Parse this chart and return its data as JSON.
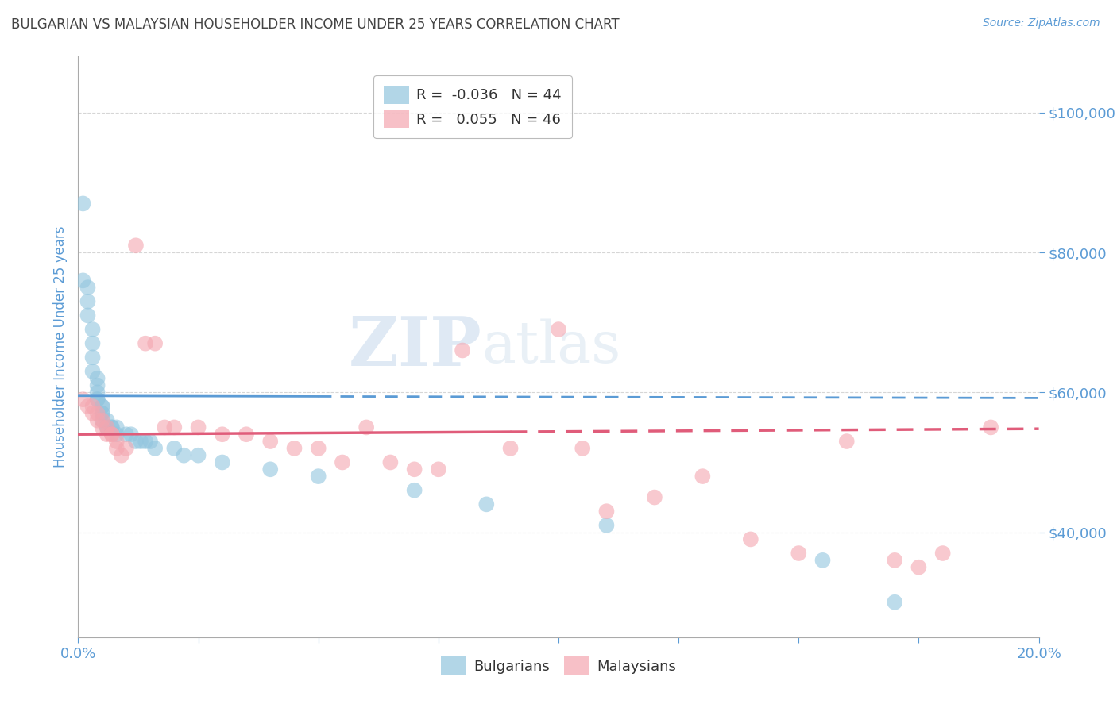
{
  "title": "BULGARIAN VS MALAYSIAN HOUSEHOLDER INCOME UNDER 25 YEARS CORRELATION CHART",
  "source": "Source: ZipAtlas.com",
  "ylabel": "Householder Income Under 25 years",
  "xlim": [
    0.0,
    0.2
  ],
  "ylim": [
    25000,
    108000
  ],
  "yticks": [
    40000,
    60000,
    80000,
    100000
  ],
  "ytick_labels": [
    "$40,000",
    "$60,000",
    "$80,000",
    "$100,000"
  ],
  "xticks": [
    0.0,
    0.025,
    0.05,
    0.075,
    0.1,
    0.125,
    0.15,
    0.175,
    0.2
  ],
  "xtick_labels": [
    "0.0%",
    "",
    "",
    "",
    "",
    "",
    "",
    "",
    "20.0%"
  ],
  "legend_entries": [
    {
      "label": "R =  -0.036   N = 44",
      "color": "#92c5de"
    },
    {
      "label": "R =   0.055   N = 46",
      "color": "#f4a6b0"
    }
  ],
  "bulgarian_scatter_x": [
    0.001,
    0.001,
    0.002,
    0.002,
    0.002,
    0.003,
    0.003,
    0.003,
    0.003,
    0.004,
    0.004,
    0.004,
    0.004,
    0.004,
    0.005,
    0.005,
    0.005,
    0.005,
    0.005,
    0.006,
    0.006,
    0.006,
    0.007,
    0.007,
    0.008,
    0.008,
    0.01,
    0.011,
    0.012,
    0.013,
    0.014,
    0.015,
    0.016,
    0.02,
    0.022,
    0.025,
    0.03,
    0.04,
    0.05,
    0.07,
    0.085,
    0.11,
    0.155,
    0.17
  ],
  "bulgarian_scatter_y": [
    87000,
    76000,
    75000,
    73000,
    71000,
    69000,
    67000,
    65000,
    63000,
    62000,
    61000,
    60000,
    59000,
    59000,
    58000,
    58000,
    57000,
    57000,
    56000,
    56000,
    55000,
    55000,
    55000,
    55000,
    55000,
    54000,
    54000,
    54000,
    53000,
    53000,
    53000,
    53000,
    52000,
    52000,
    51000,
    51000,
    50000,
    49000,
    48000,
    46000,
    44000,
    41000,
    36000,
    30000
  ],
  "malaysian_scatter_x": [
    0.001,
    0.002,
    0.003,
    0.003,
    0.004,
    0.004,
    0.005,
    0.005,
    0.006,
    0.006,
    0.007,
    0.007,
    0.008,
    0.008,
    0.009,
    0.01,
    0.012,
    0.014,
    0.016,
    0.018,
    0.02,
    0.025,
    0.03,
    0.035,
    0.04,
    0.045,
    0.05,
    0.055,
    0.06,
    0.065,
    0.07,
    0.075,
    0.08,
    0.09,
    0.1,
    0.105,
    0.11,
    0.12,
    0.13,
    0.14,
    0.15,
    0.16,
    0.17,
    0.175,
    0.18,
    0.19
  ],
  "malaysian_scatter_y": [
    59000,
    58000,
    58000,
    57000,
    57000,
    56000,
    56000,
    55000,
    55000,
    54000,
    54000,
    54000,
    53000,
    52000,
    51000,
    52000,
    81000,
    67000,
    67000,
    55000,
    55000,
    55000,
    54000,
    54000,
    53000,
    52000,
    52000,
    50000,
    55000,
    50000,
    49000,
    49000,
    66000,
    52000,
    69000,
    52000,
    43000,
    45000,
    48000,
    39000,
    37000,
    53000,
    36000,
    35000,
    37000,
    55000
  ],
  "blue_color": "#92c5de",
  "pink_color": "#f4a6b0",
  "blue_line_color": "#5b9bd5",
  "pink_line_color": "#e05c7a",
  "watermark_zip": "ZIP",
  "watermark_atlas": "atlas",
  "background_color": "#ffffff",
  "grid_color": "#cccccc",
  "title_color": "#444444",
  "axis_label_color": "#5b9bd5",
  "tick_color": "#5b9bd5",
  "blue_reg_slope": -1500,
  "blue_reg_intercept": 59500,
  "pink_reg_slope": 4000,
  "pink_reg_intercept": 54000
}
